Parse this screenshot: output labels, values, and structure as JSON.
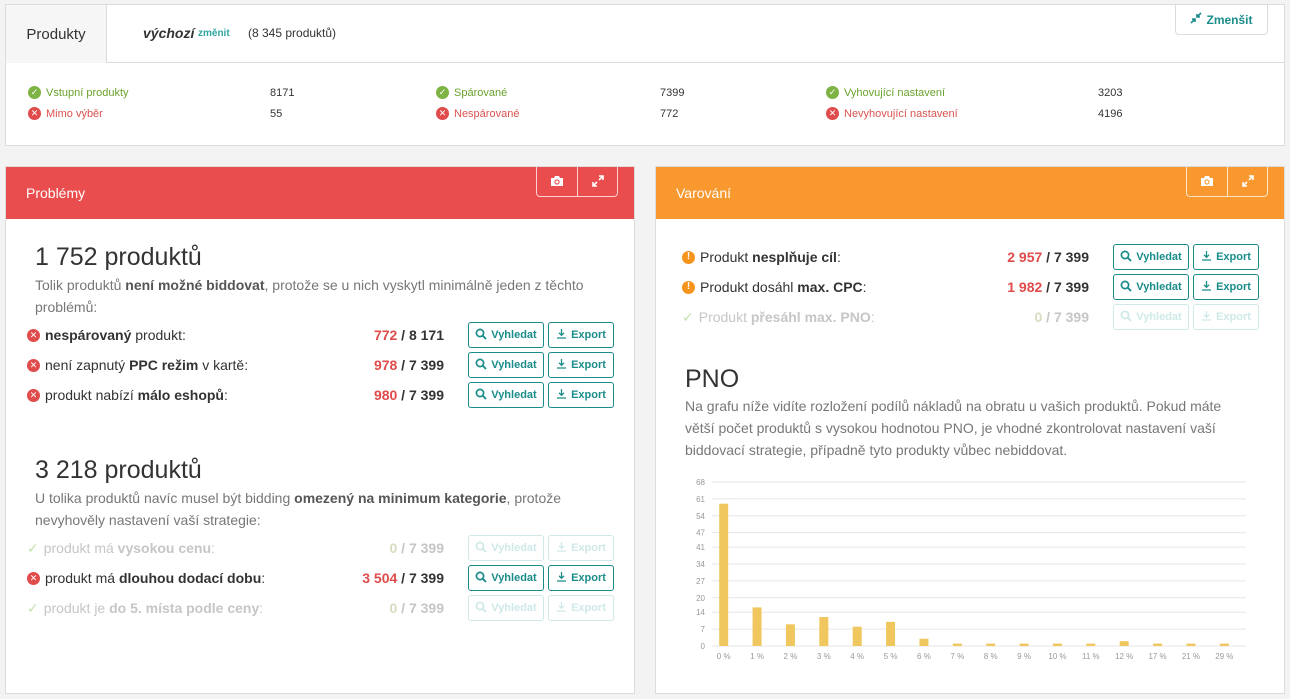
{
  "header": {
    "tab_title": "Produkty",
    "variant": "výchozí",
    "change_link": "změnit",
    "total": "(8 345 produktů)",
    "shrink_button": "Zmenšit"
  },
  "stats": [
    {
      "label": "Vstupní produkty",
      "value": "8171",
      "status": "ok"
    },
    {
      "label": "Mimo výběr",
      "value": "55",
      "status": "err"
    },
    {
      "label": "Spárované",
      "value": "7399",
      "status": "ok"
    },
    {
      "label": "Nespárované",
      "value": "772",
      "status": "err"
    },
    {
      "label": "Vyhovující nastavení",
      "value": "3203",
      "status": "ok"
    },
    {
      "label": "Nevyhovující nastavení",
      "value": "4196",
      "status": "err"
    }
  ],
  "problems": {
    "title": "Problémy",
    "block1": {
      "count": "1 752 produktů",
      "desc_a": "Tolik produktů ",
      "desc_b": "není možné biddovat",
      "desc_c": ", protože se u nich vyskytl minimálně jeden z těchto problémů:",
      "rows": [
        {
          "pre": "",
          "bold": "nespárovaný",
          "post": " produkt:",
          "n": "772",
          "total": " / 8 171"
        },
        {
          "pre": "není zapnutý ",
          "bold": "PPC režim",
          "post": " v kartě:",
          "n": "978",
          "total": " / 7 399"
        },
        {
          "pre": "produkt nabízí ",
          "bold": "málo eshopů",
          "post": ":",
          "n": "980",
          "total": " / 7 399"
        }
      ]
    },
    "block2": {
      "count": "3 218 produktů",
      "desc_a": "U tolika produktů navíc musel být bidding ",
      "desc_b": "omezený na minimum kategorie",
      "desc_c": ", protože nevyhověly nastavení vaší strategie:",
      "rows": [
        {
          "pre": "produkt má ",
          "bold": "vysokou cenu",
          "post": ":",
          "n": "0",
          "total": " / 7 399"
        },
        {
          "pre": "produkt má ",
          "bold": "dlouhou dodací dobu",
          "post": ":",
          "n": "3 504",
          "total": " / 7 399"
        },
        {
          "pre": "produkt je ",
          "bold": "do 5. místa podle ceny",
          "post": ":",
          "n": "0",
          "total": " / 7 399"
        }
      ]
    }
  },
  "warnings": {
    "title": "Varování",
    "rows": [
      {
        "pre": "Produkt ",
        "bold": "nesplňuje cíl",
        "post": ":",
        "n": "2 957",
        "total": " / 7 399"
      },
      {
        "pre": "Produkt dosáhl ",
        "bold": "max. CPC",
        "post": ":",
        "n": "1 982",
        "total": " / 7 399"
      },
      {
        "pre": "Produkt ",
        "bold": "přesáhl max. PNO",
        "post": ":",
        "n": "0",
        "total": " / 7 399"
      }
    ],
    "pno_title": "PNO",
    "pno_desc": "Na grafu níže vidíte rozložení podílů nákladů na obratu u vašich produktů. Pokud máte větší počet produktů s vysokou hodnotou PNO, je vhodné zkontrolovat nastavení vaší biddovací strategie, případně tyto produkty vůbec nebiddovat."
  },
  "buttons": {
    "search": "Vyhledat",
    "export": "Export"
  },
  "colors": {
    "problems": "#e94d4d",
    "warnings": "#f8982f",
    "accent": "#1a8d8a",
    "bar": "#f0c75e"
  },
  "chart_data": {
    "type": "bar",
    "categories": [
      "0 %",
      "1 %",
      "2 %",
      "3 %",
      "4 %",
      "5 %",
      "6 %",
      "7 %",
      "8 %",
      "9 %",
      "10 %",
      "11 %",
      "12 %",
      "17 %",
      "21 %",
      "29 %"
    ],
    "values": [
      59,
      16,
      9,
      12,
      8,
      10,
      3,
      1,
      1,
      1,
      1,
      1,
      2,
      1,
      1,
      1
    ],
    "yticks": [
      "0",
      "7",
      "14",
      "20",
      "27",
      "34",
      "41",
      "47",
      "54",
      "61",
      "68"
    ],
    "ylim": [
      0,
      68
    ],
    "grid": true
  }
}
